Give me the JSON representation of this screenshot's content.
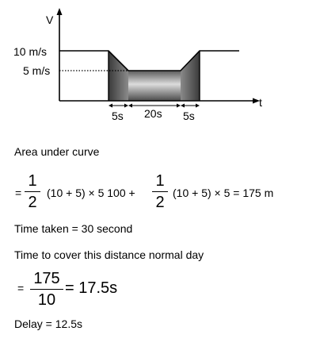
{
  "graph": {
    "y_axis_label": "V",
    "x_axis_label": "t",
    "y_label_high": "10 m/s",
    "y_label_low": "5 m/s",
    "interval_labels": [
      "5s",
      "20s",
      "5s"
    ]
  },
  "solution": {
    "line1": "Area under curve",
    "eq1_prefix": "=",
    "frac_half_num": "1",
    "frac_half_den": "2",
    "eq1_mid": "(10 + 5) × 5 100 +",
    "eq1_end": "(10 + 5) × 5 = 175 m",
    "line_time_taken": "Time taken = 30 second",
    "line_normal_day": "Time to cover this distance normal day",
    "eq2_prefix": "=",
    "frac2_num": "175",
    "frac2_den": "10",
    "eq2_result": "= 17.5s",
    "line_delay": "Delay = 12.5s"
  }
}
